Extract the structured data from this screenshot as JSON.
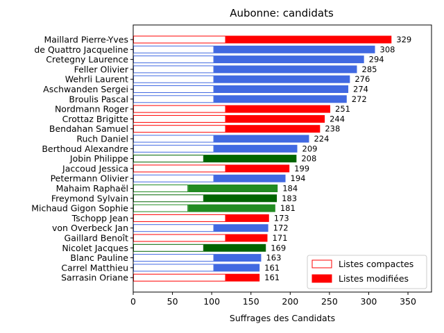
{
  "chart_data": {
    "type": "bar",
    "orientation": "horizontal",
    "title": "Aubonne: candidats",
    "xlabel": "Suffrages des Candidats",
    "ylabel": "",
    "xlim": [
      0,
      380
    ],
    "xticks": [
      0,
      50,
      100,
      150,
      200,
      250,
      300,
      350
    ],
    "grid": false,
    "legend": {
      "placement": "bottom-right",
      "entries": [
        {
          "label": "Listes compactes",
          "style": "outline",
          "color": "#ff0000"
        },
        {
          "label": "Listes modifiées",
          "style": "filled",
          "color": "#ff0000"
        }
      ]
    },
    "candidates": [
      {
        "name": "Maillard Pierre-Yves",
        "compactes": 118,
        "total": 329,
        "color": "#ff0000"
      },
      {
        "name": "de Quattro Jacqueline",
        "compactes": 103,
        "total": 308,
        "color": "#4169e1"
      },
      {
        "name": "Cretegny Laurence",
        "compactes": 103,
        "total": 294,
        "color": "#4169e1"
      },
      {
        "name": "Feller Olivier",
        "compactes": 103,
        "total": 285,
        "color": "#4169e1"
      },
      {
        "name": "Wehrli Laurent",
        "compactes": 103,
        "total": 276,
        "color": "#4169e1"
      },
      {
        "name": "Aschwanden Sergei",
        "compactes": 103,
        "total": 274,
        "color": "#4169e1"
      },
      {
        "name": "Broulis Pascal",
        "compactes": 103,
        "total": 272,
        "color": "#4169e1"
      },
      {
        "name": "Nordmann Roger",
        "compactes": 118,
        "total": 251,
        "color": "#ff0000"
      },
      {
        "name": "Crottaz Brigitte",
        "compactes": 118,
        "total": 244,
        "color": "#ff0000"
      },
      {
        "name": "Bendahan Samuel",
        "compactes": 118,
        "total": 238,
        "color": "#ff0000"
      },
      {
        "name": "Ruch Daniel",
        "compactes": 103,
        "total": 224,
        "color": "#4169e1"
      },
      {
        "name": "Berthoud Alexandre",
        "compactes": 103,
        "total": 209,
        "color": "#4169e1"
      },
      {
        "name": "Jobin Philippe",
        "compactes": 90,
        "total": 208,
        "color": "#006400"
      },
      {
        "name": "Jaccoud Jessica",
        "compactes": 118,
        "total": 199,
        "color": "#ff0000"
      },
      {
        "name": "Petermann Olivier",
        "compactes": 103,
        "total": 194,
        "color": "#4169e1"
      },
      {
        "name": "Mahaim Raphaël",
        "compactes": 70,
        "total": 184,
        "color": "#228b22"
      },
      {
        "name": "Freymond Sylvain",
        "compactes": 90,
        "total": 183,
        "color": "#006400"
      },
      {
        "name": "Michaud Gigon Sophie",
        "compactes": 70,
        "total": 181,
        "color": "#228b22"
      },
      {
        "name": "Tschopp Jean",
        "compactes": 118,
        "total": 173,
        "color": "#ff0000"
      },
      {
        "name": "von Overbeck Jan",
        "compactes": 103,
        "total": 172,
        "color": "#4169e1"
      },
      {
        "name": "Gaillard Benoît",
        "compactes": 118,
        "total": 171,
        "color": "#ff0000"
      },
      {
        "name": "Nicolet Jacques",
        "compactes": 90,
        "total": 169,
        "color": "#006400"
      },
      {
        "name": "Blanc Pauline",
        "compactes": 103,
        "total": 163,
        "color": "#4169e1"
      },
      {
        "name": "Carrel Matthieu",
        "compactes": 103,
        "total": 161,
        "color": "#4169e1"
      },
      {
        "name": "Sarrasin Oriane",
        "compactes": 118,
        "total": 161,
        "color": "#ff0000"
      }
    ]
  }
}
